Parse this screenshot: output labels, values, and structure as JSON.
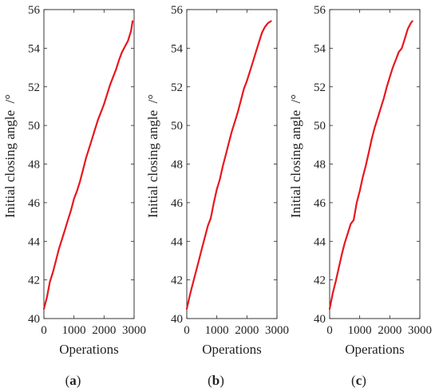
{
  "figure": {
    "panel_labels": [
      "(a)",
      "(b)",
      "(c)"
    ]
  },
  "chart_data": [
    {
      "type": "line",
      "panel": "(a)",
      "xlabel": "Operations",
      "ylabel": "Initial closing angle  /°",
      "xlim": [
        0,
        3000
      ],
      "ylim": [
        40,
        56
      ],
      "xticks": [
        0,
        1000,
        2000,
        3000
      ],
      "yticks": [
        40,
        42,
        44,
        46,
        48,
        50,
        52,
        54,
        56
      ],
      "grid": false,
      "series": [
        {
          "color": "#e8161e",
          "x": [
            0,
            100,
            200,
            300,
            400,
            500,
            600,
            700,
            800,
            900,
            1000,
            1100,
            1200,
            1300,
            1400,
            1500,
            1600,
            1700,
            1800,
            1900,
            2000,
            2100,
            2200,
            2300,
            2400,
            2500,
            2600,
            2700,
            2800,
            2900,
            2950
          ],
          "y": [
            40.5,
            41.1,
            41.9,
            42.4,
            43.0,
            43.6,
            44.1,
            44.6,
            45.1,
            45.6,
            46.2,
            46.6,
            47.1,
            47.7,
            48.3,
            48.8,
            49.3,
            49.8,
            50.3,
            50.7,
            51.1,
            51.6,
            52.1,
            52.5,
            52.9,
            53.4,
            53.8,
            54.1,
            54.4,
            54.9,
            55.4
          ]
        }
      ]
    },
    {
      "type": "line",
      "panel": "(b)",
      "xlabel": "Operations",
      "ylabel": "Initial closing angle  /°",
      "xlim": [
        0,
        3000
      ],
      "ylim": [
        40,
        56
      ],
      "xticks": [
        0,
        1000,
        2000,
        3000
      ],
      "yticks": [
        40,
        42,
        44,
        46,
        48,
        50,
        52,
        54,
        56
      ],
      "grid": false,
      "series": [
        {
          "color": "#e8161e",
          "x": [
            0,
            100,
            200,
            300,
            400,
            500,
            600,
            700,
            800,
            900,
            1000,
            1100,
            1200,
            1300,
            1400,
            1500,
            1600,
            1700,
            1800,
            1900,
            2000,
            2100,
            2200,
            2300,
            2400,
            2500,
            2600,
            2700,
            2800
          ],
          "y": [
            40.5,
            41.2,
            41.8,
            42.4,
            43.0,
            43.6,
            44.2,
            44.8,
            45.2,
            46.0,
            46.7,
            47.2,
            47.9,
            48.5,
            49.1,
            49.7,
            50.2,
            50.7,
            51.3,
            51.9,
            52.3,
            52.8,
            53.3,
            53.8,
            54.3,
            54.8,
            55.1,
            55.3,
            55.4
          ]
        }
      ]
    },
    {
      "type": "line",
      "panel": "(c)",
      "xlabel": "Operations",
      "ylabel": "Initial closing angle  /°",
      "xlim": [
        0,
        3000
      ],
      "ylim": [
        40,
        56
      ],
      "xticks": [
        0,
        1000,
        2000,
        3000
      ],
      "yticks": [
        40,
        42,
        44,
        46,
        48,
        50,
        52,
        54,
        56
      ],
      "grid": false,
      "series": [
        {
          "color": "#e8161e",
          "x": [
            0,
            100,
            200,
            300,
            400,
            500,
            600,
            700,
            800,
            900,
            1000,
            1100,
            1200,
            1300,
            1400,
            1500,
            1600,
            1700,
            1800,
            1900,
            2000,
            2100,
            2200,
            2300,
            2400,
            2500,
            2600,
            2700,
            2750
          ],
          "y": [
            40.5,
            41.3,
            41.9,
            42.6,
            43.3,
            43.9,
            44.4,
            44.9,
            45.1,
            46.0,
            46.6,
            47.3,
            47.9,
            48.6,
            49.3,
            49.9,
            50.4,
            50.9,
            51.4,
            52.0,
            52.5,
            53.0,
            53.4,
            53.8,
            54.0,
            54.5,
            55.0,
            55.3,
            55.4
          ]
        }
      ]
    }
  ]
}
